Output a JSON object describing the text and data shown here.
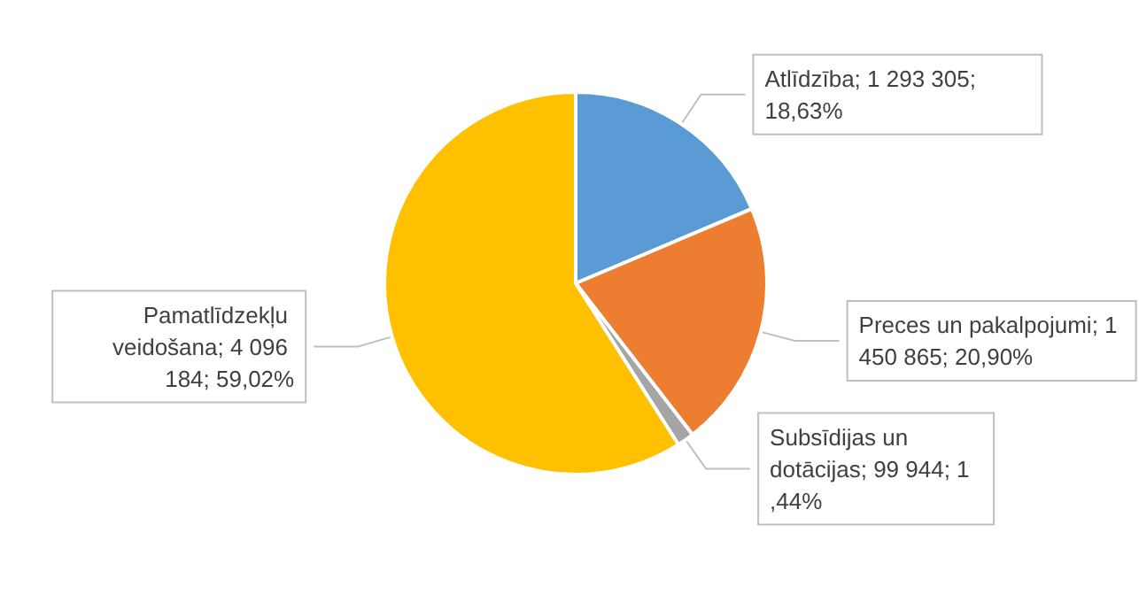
{
  "chart_data": {
    "type": "pie",
    "categories": [
      "Atlīdzība",
      "Preces un pakalpojumi",
      "Subsīdijas un dotācijas",
      "Pamatlīdzekļu veidošana"
    ],
    "values": [
      1293305,
      1450865,
      99944,
      4096184
    ],
    "value_labels": [
      "1 293 305; 18,63%",
      "1 450 865; 20,90%",
      "99 944; 1,44%",
      "4 096 184; 59,02%"
    ],
    "colors": [
      "#5b9bd5",
      "#ed7d31",
      "#a5a5a5",
      "#ffc000"
    ],
    "legend": false
  }
}
